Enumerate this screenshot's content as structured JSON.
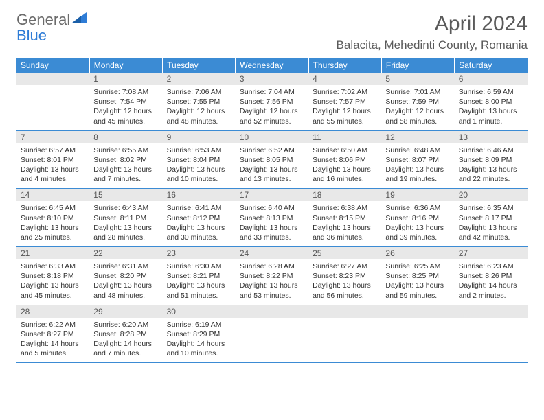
{
  "logo": {
    "text1": "General",
    "text2": "Blue"
  },
  "title": "April 2024",
  "location": "Balacita, Mehedinti County, Romania",
  "colors": {
    "header_bg": "#3b8bd4",
    "header_text": "#ffffff",
    "daynum_bg": "#e8e8e8",
    "text": "#333333",
    "divider": "#3b8bd4"
  },
  "weekdays": [
    "Sunday",
    "Monday",
    "Tuesday",
    "Wednesday",
    "Thursday",
    "Friday",
    "Saturday"
  ],
  "weeks": [
    [
      null,
      {
        "n": "1",
        "sr": "Sunrise: 7:08 AM",
        "ss": "Sunset: 7:54 PM",
        "d1": "Daylight: 12 hours",
        "d2": "and 45 minutes."
      },
      {
        "n": "2",
        "sr": "Sunrise: 7:06 AM",
        "ss": "Sunset: 7:55 PM",
        "d1": "Daylight: 12 hours",
        "d2": "and 48 minutes."
      },
      {
        "n": "3",
        "sr": "Sunrise: 7:04 AM",
        "ss": "Sunset: 7:56 PM",
        "d1": "Daylight: 12 hours",
        "d2": "and 52 minutes."
      },
      {
        "n": "4",
        "sr": "Sunrise: 7:02 AM",
        "ss": "Sunset: 7:57 PM",
        "d1": "Daylight: 12 hours",
        "d2": "and 55 minutes."
      },
      {
        "n": "5",
        "sr": "Sunrise: 7:01 AM",
        "ss": "Sunset: 7:59 PM",
        "d1": "Daylight: 12 hours",
        "d2": "and 58 minutes."
      },
      {
        "n": "6",
        "sr": "Sunrise: 6:59 AM",
        "ss": "Sunset: 8:00 PM",
        "d1": "Daylight: 13 hours",
        "d2": "and 1 minute."
      }
    ],
    [
      {
        "n": "7",
        "sr": "Sunrise: 6:57 AM",
        "ss": "Sunset: 8:01 PM",
        "d1": "Daylight: 13 hours",
        "d2": "and 4 minutes."
      },
      {
        "n": "8",
        "sr": "Sunrise: 6:55 AM",
        "ss": "Sunset: 8:02 PM",
        "d1": "Daylight: 13 hours",
        "d2": "and 7 minutes."
      },
      {
        "n": "9",
        "sr": "Sunrise: 6:53 AM",
        "ss": "Sunset: 8:04 PM",
        "d1": "Daylight: 13 hours",
        "d2": "and 10 minutes."
      },
      {
        "n": "10",
        "sr": "Sunrise: 6:52 AM",
        "ss": "Sunset: 8:05 PM",
        "d1": "Daylight: 13 hours",
        "d2": "and 13 minutes."
      },
      {
        "n": "11",
        "sr": "Sunrise: 6:50 AM",
        "ss": "Sunset: 8:06 PM",
        "d1": "Daylight: 13 hours",
        "d2": "and 16 minutes."
      },
      {
        "n": "12",
        "sr": "Sunrise: 6:48 AM",
        "ss": "Sunset: 8:07 PM",
        "d1": "Daylight: 13 hours",
        "d2": "and 19 minutes."
      },
      {
        "n": "13",
        "sr": "Sunrise: 6:46 AM",
        "ss": "Sunset: 8:09 PM",
        "d1": "Daylight: 13 hours",
        "d2": "and 22 minutes."
      }
    ],
    [
      {
        "n": "14",
        "sr": "Sunrise: 6:45 AM",
        "ss": "Sunset: 8:10 PM",
        "d1": "Daylight: 13 hours",
        "d2": "and 25 minutes."
      },
      {
        "n": "15",
        "sr": "Sunrise: 6:43 AM",
        "ss": "Sunset: 8:11 PM",
        "d1": "Daylight: 13 hours",
        "d2": "and 28 minutes."
      },
      {
        "n": "16",
        "sr": "Sunrise: 6:41 AM",
        "ss": "Sunset: 8:12 PM",
        "d1": "Daylight: 13 hours",
        "d2": "and 30 minutes."
      },
      {
        "n": "17",
        "sr": "Sunrise: 6:40 AM",
        "ss": "Sunset: 8:13 PM",
        "d1": "Daylight: 13 hours",
        "d2": "and 33 minutes."
      },
      {
        "n": "18",
        "sr": "Sunrise: 6:38 AM",
        "ss": "Sunset: 8:15 PM",
        "d1": "Daylight: 13 hours",
        "d2": "and 36 minutes."
      },
      {
        "n": "19",
        "sr": "Sunrise: 6:36 AM",
        "ss": "Sunset: 8:16 PM",
        "d1": "Daylight: 13 hours",
        "d2": "and 39 minutes."
      },
      {
        "n": "20",
        "sr": "Sunrise: 6:35 AM",
        "ss": "Sunset: 8:17 PM",
        "d1": "Daylight: 13 hours",
        "d2": "and 42 minutes."
      }
    ],
    [
      {
        "n": "21",
        "sr": "Sunrise: 6:33 AM",
        "ss": "Sunset: 8:18 PM",
        "d1": "Daylight: 13 hours",
        "d2": "and 45 minutes."
      },
      {
        "n": "22",
        "sr": "Sunrise: 6:31 AM",
        "ss": "Sunset: 8:20 PM",
        "d1": "Daylight: 13 hours",
        "d2": "and 48 minutes."
      },
      {
        "n": "23",
        "sr": "Sunrise: 6:30 AM",
        "ss": "Sunset: 8:21 PM",
        "d1": "Daylight: 13 hours",
        "d2": "and 51 minutes."
      },
      {
        "n": "24",
        "sr": "Sunrise: 6:28 AM",
        "ss": "Sunset: 8:22 PM",
        "d1": "Daylight: 13 hours",
        "d2": "and 53 minutes."
      },
      {
        "n": "25",
        "sr": "Sunrise: 6:27 AM",
        "ss": "Sunset: 8:23 PM",
        "d1": "Daylight: 13 hours",
        "d2": "and 56 minutes."
      },
      {
        "n": "26",
        "sr": "Sunrise: 6:25 AM",
        "ss": "Sunset: 8:25 PM",
        "d1": "Daylight: 13 hours",
        "d2": "and 59 minutes."
      },
      {
        "n": "27",
        "sr": "Sunrise: 6:23 AM",
        "ss": "Sunset: 8:26 PM",
        "d1": "Daylight: 14 hours",
        "d2": "and 2 minutes."
      }
    ],
    [
      {
        "n": "28",
        "sr": "Sunrise: 6:22 AM",
        "ss": "Sunset: 8:27 PM",
        "d1": "Daylight: 14 hours",
        "d2": "and 5 minutes."
      },
      {
        "n": "29",
        "sr": "Sunrise: 6:20 AM",
        "ss": "Sunset: 8:28 PM",
        "d1": "Daylight: 14 hours",
        "d2": "and 7 minutes."
      },
      {
        "n": "30",
        "sr": "Sunrise: 6:19 AM",
        "ss": "Sunset: 8:29 PM",
        "d1": "Daylight: 14 hours",
        "d2": "and 10 minutes."
      },
      null,
      null,
      null,
      null
    ]
  ]
}
